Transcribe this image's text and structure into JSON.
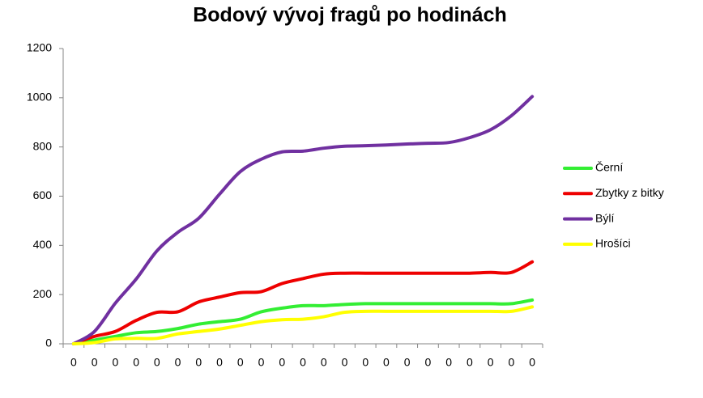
{
  "chart_data": {
    "type": "line",
    "title": "Bodový vývoj fragů po hodinách",
    "categories": [
      "0",
      "0",
      "0",
      "0",
      "0",
      "0",
      "0",
      "0",
      "0",
      "0",
      "0",
      "0",
      "0",
      "0",
      "0",
      "0",
      "0",
      "0",
      "0",
      "0",
      "0",
      "0",
      "0"
    ],
    "ylim": [
      0,
      1200
    ],
    "yticks": [
      0,
      200,
      400,
      600,
      800,
      1000,
      1200
    ],
    "grid": false,
    "legend": "right",
    "series": [
      {
        "name": "Černí",
        "color": "#33ee33",
        "values": [
          0,
          15,
          30,
          45,
          50,
          62,
          80,
          90,
          100,
          130,
          145,
          155,
          155,
          160,
          163,
          163,
          163,
          163,
          163,
          163,
          163,
          163,
          178
        ]
      },
      {
        "name": "Zbytky z bitky",
        "color": "#ee0000",
        "values": [
          0,
          30,
          50,
          95,
          128,
          130,
          170,
          190,
          208,
          212,
          245,
          265,
          283,
          287,
          287,
          287,
          287,
          287,
          287,
          287,
          290,
          290,
          333
        ]
      },
      {
        "name": "Býlí",
        "color": "#7030a0",
        "values": [
          0,
          50,
          165,
          263,
          378,
          453,
          510,
          608,
          700,
          750,
          780,
          783,
          795,
          803,
          805,
          808,
          812,
          815,
          818,
          838,
          870,
          927,
          1005
        ]
      },
      {
        "name": "Hrošíci",
        "color": "#ffff00",
        "values": [
          0,
          5,
          20,
          22,
          22,
          40,
          50,
          60,
          75,
          90,
          98,
          100,
          110,
          128,
          132,
          132,
          132,
          132,
          132,
          132,
          132,
          132,
          150
        ]
      }
    ]
  }
}
